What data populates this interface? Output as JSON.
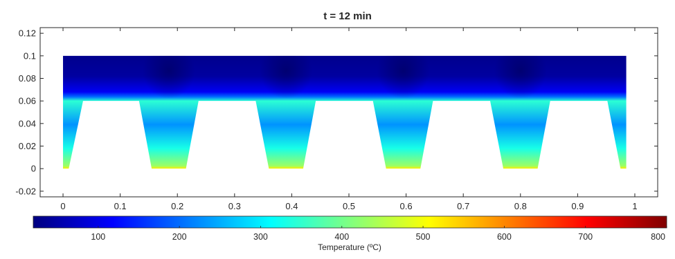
{
  "chart_data": {
    "type": "heatmap",
    "title": "t = 12 min",
    "xlabel": "",
    "ylabel": "",
    "xlim": [
      -0.04,
      1.04
    ],
    "ylim": [
      -0.025,
      0.125
    ],
    "x_ticks": [
      0,
      0.1,
      0.2,
      0.3,
      0.4,
      0.5,
      0.6,
      0.7,
      0.8,
      0.9,
      1
    ],
    "x_tick_labels": [
      "0",
      "0.1",
      "0.2",
      "0.3",
      "0.4",
      "0.5",
      "0.6",
      "0.7",
      "0.8",
      "0.9",
      "1"
    ],
    "y_ticks": [
      0.12,
      0.1,
      0.08,
      0.06,
      0.04,
      0.02,
      0,
      -0.02
    ],
    "y_tick_labels": [
      "0.12",
      "0.1",
      "0.08",
      "0.06",
      "0.04",
      "0.02",
      "0",
      "-0.02"
    ],
    "grid": false,
    "domain": {
      "x_range": [
        0,
        0.985
      ],
      "top_y": 0.1,
      "gap_top_y": 0.06,
      "gap_bottom_y": 0,
      "gaps": [
        {
          "x_bottom": [
            0,
            0.01
          ],
          "x_top": [
            0,
            0.035
          ]
        },
        {
          "x_bottom": [
            0.155,
            0.215
          ],
          "x_top": [
            0.133,
            0.237
          ]
        },
        {
          "x_bottom": [
            0.36,
            0.42
          ],
          "x_top": [
            0.337,
            0.442
          ]
        },
        {
          "x_bottom": [
            0.565,
            0.625
          ],
          "x_top": [
            0.542,
            0.647
          ]
        },
        {
          "x_bottom": [
            0.77,
            0.83
          ],
          "x_top": [
            0.747,
            0.852
          ]
        },
        {
          "x_bottom": [
            0.975,
            0.985
          ],
          "x_top": [
            0.952,
            0.985
          ]
        }
      ]
    },
    "temperature_field": {
      "top_value_C": 30,
      "gap_top_edge_value_C": 345,
      "gap_bottom_value_C": 520
    },
    "colorbar": {
      "label": "Temperature (ºC)",
      "range": [
        20,
        800
      ],
      "ticks": [
        100,
        200,
        300,
        400,
        500,
        600,
        700,
        800
      ],
      "tick_labels": [
        "100",
        "200",
        "300",
        "400",
        "500",
        "600",
        "700",
        "800"
      ],
      "colormap": "jet"
    }
  }
}
